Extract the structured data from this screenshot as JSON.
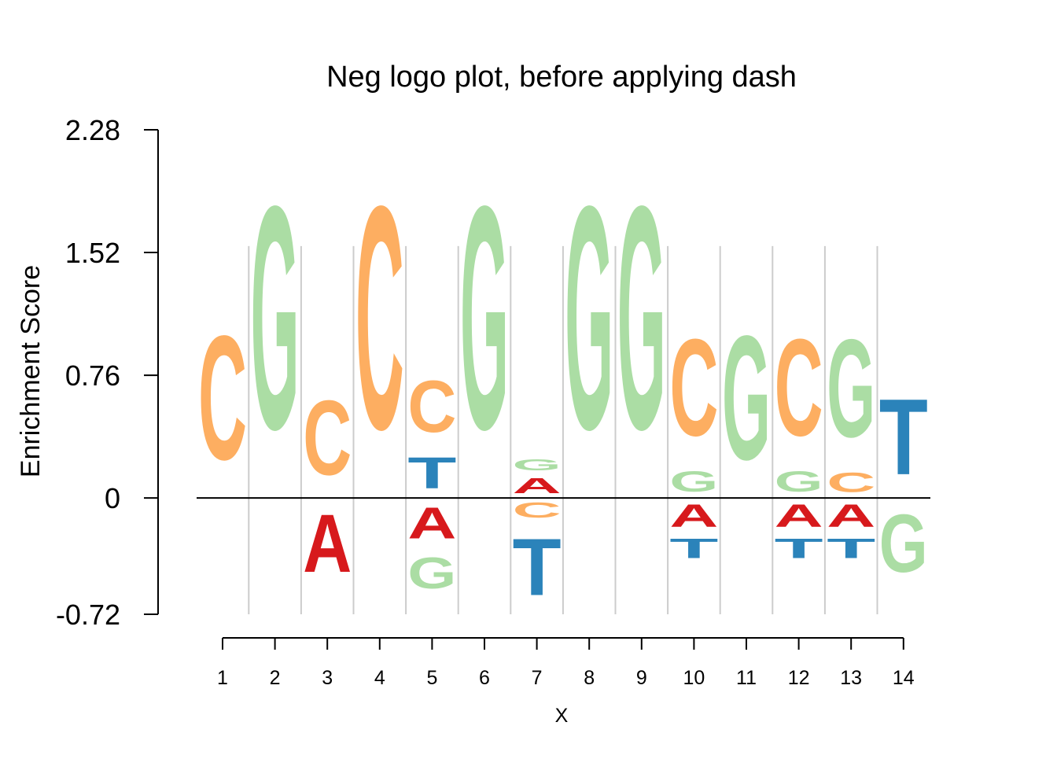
{
  "chart_data": {
    "type": "sequence-logo",
    "title": "Neg logo plot, before applying dash",
    "xlabel": "X",
    "ylabel": "Enrichment Score",
    "ylim": [
      -0.72,
      2.28
    ],
    "y_ticks": [
      "2.28",
      "1.52",
      "0.76",
      "0",
      "-0.72"
    ],
    "y_tick_values": [
      2.28,
      1.52,
      0.76,
      0,
      -0.72
    ],
    "x_ticks": [
      "1",
      "2",
      "3",
      "4",
      "5",
      "6",
      "7",
      "8",
      "9",
      "10",
      "11",
      "12",
      "13",
      "14"
    ],
    "colors": {
      "A": "#d7191c",
      "C": "#fdae61",
      "G": "#abdda4",
      "T": "#2b83ba"
    },
    "positions": [
      {
        "x": 1,
        "positive": [
          {
            "letter": "C",
            "height": 1.23
          }
        ],
        "negative": []
      },
      {
        "x": 2,
        "positive": [
          {
            "letter": "G",
            "height": 2.21
          }
        ],
        "negative": []
      },
      {
        "x": 3,
        "positive": [
          {
            "letter": "C",
            "height": 0.74
          }
        ],
        "negative": [
          {
            "letter": "A",
            "height": 0.57
          }
        ]
      },
      {
        "x": 4,
        "positive": [
          {
            "letter": "C",
            "height": 2.21
          }
        ],
        "negative": []
      },
      {
        "x": 5,
        "positive": [
          {
            "letter": "T",
            "height": 0.31
          },
          {
            "letter": "C",
            "height": 0.51
          }
        ],
        "negative": [
          {
            "letter": "A",
            "height": 0.31
          },
          {
            "letter": "G",
            "height": 0.31
          }
        ]
      },
      {
        "x": 6,
        "positive": [
          {
            "letter": "G",
            "height": 2.21
          }
        ],
        "negative": []
      },
      {
        "x": 7,
        "positive": [
          {
            "letter": "A",
            "height": 0.15
          },
          {
            "letter": "G",
            "height": 0.11
          }
        ],
        "negative": [
          {
            "letter": "C",
            "height": 0.15
          },
          {
            "letter": "T",
            "height": 0.56
          }
        ]
      },
      {
        "x": 8,
        "positive": [
          {
            "letter": "G",
            "height": 2.21
          }
        ],
        "negative": []
      },
      {
        "x": 9,
        "positive": [
          {
            "letter": "G",
            "height": 2.21
          }
        ],
        "negative": []
      },
      {
        "x": 10,
        "positive": [
          {
            "letter": "G",
            "height": 0.2
          },
          {
            "letter": "C",
            "height": 0.96
          }
        ],
        "negative": [
          {
            "letter": "A",
            "height": 0.22
          },
          {
            "letter": "T",
            "height": 0.19
          }
        ]
      },
      {
        "x": 11,
        "positive": [
          {
            "letter": "G",
            "height": 1.23
          }
        ],
        "negative": []
      },
      {
        "x": 12,
        "positive": [
          {
            "letter": "G",
            "height": 0.2
          },
          {
            "letter": "C",
            "height": 0.96
          }
        ],
        "negative": [
          {
            "letter": "A",
            "height": 0.22
          },
          {
            "letter": "T",
            "height": 0.19
          }
        ]
      },
      {
        "x": 13,
        "positive": [
          {
            "letter": "C",
            "height": 0.19
          },
          {
            "letter": "G",
            "height": 0.97
          }
        ],
        "negative": [
          {
            "letter": "A",
            "height": 0.22
          },
          {
            "letter": "T",
            "height": 0.19
          }
        ]
      },
      {
        "x": 14,
        "positive": [
          {
            "letter": "T",
            "height": 0.75
          }
        ],
        "negative": [
          {
            "letter": "G",
            "height": 0.57
          }
        ]
      }
    ]
  }
}
